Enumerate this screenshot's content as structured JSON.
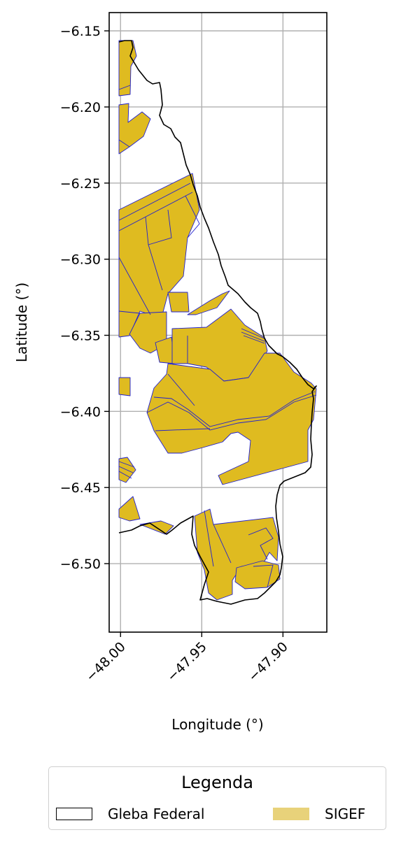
{
  "axes": {
    "xlabel": "Longitude (°)",
    "ylabel": "Latitude (°)",
    "xlim": [
      -48.007,
      -47.873
    ],
    "ylim": [
      -6.545,
      -6.138
    ],
    "x_ticks": [
      {
        "value": -48.0,
        "label": "−48.00"
      },
      {
        "value": -47.95,
        "label": "−47.95"
      },
      {
        "value": -47.9,
        "label": "−47.90"
      }
    ],
    "y_ticks": [
      {
        "value": -6.15,
        "label": "−6.15"
      },
      {
        "value": -6.2,
        "label": "−6.20"
      },
      {
        "value": -6.25,
        "label": "−6.25"
      },
      {
        "value": -6.3,
        "label": "−6.30"
      },
      {
        "value": -6.35,
        "label": "−6.35"
      },
      {
        "value": -6.4,
        "label": "−6.40"
      },
      {
        "value": -6.45,
        "label": "−6.45"
      },
      {
        "value": -6.5,
        "label": "−6.50"
      }
    ],
    "grid": true
  },
  "legend": {
    "title": "Legenda",
    "placement": "bottom-center",
    "entries": [
      {
        "label": "Gleba Federal",
        "style": "outline",
        "color": "#000000"
      },
      {
        "label": "SIGEF",
        "style": "fill",
        "color": "#e8d27a"
      }
    ]
  },
  "colors": {
    "gleba_outline": "#000000",
    "sigef_fill": "#dfbb20",
    "sigef_edge": "#2020d0",
    "grid": "#b0b0b0"
  }
}
